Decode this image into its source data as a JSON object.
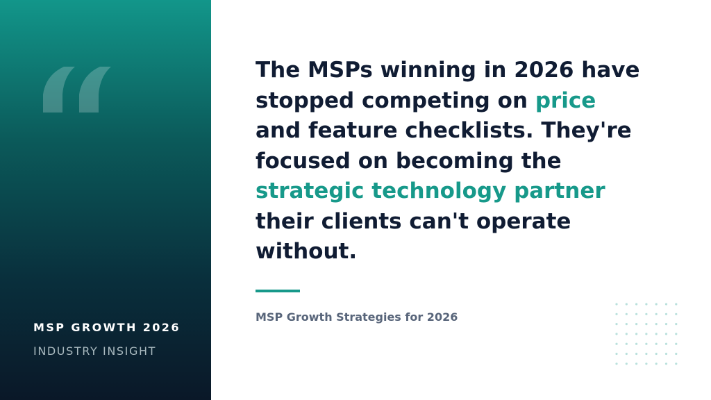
{
  "panel": {
    "title": "MSP GROWTH 2026",
    "subtitle": "INDUSTRY INSIGHT"
  },
  "quote": {
    "line1": "The MSPs winning in 2026 have",
    "line2_text": "stopped competing on ",
    "line2_highlight": "price",
    "line3": "and feature checklists. They're",
    "line4": "focused on becoming the",
    "line5_highlight": "strategic technology partner",
    "line6": "their clients can't operate",
    "line7": "without."
  },
  "source": "MSP Growth Strategies for 2026",
  "colors": {
    "accent": "#17998a",
    "text": "#101c33",
    "muted": "#58657a",
    "panel_top": "#12968a",
    "panel_bottom": "#0a1828"
  },
  "icons": {
    "quote_mark": "quote-mark-icon",
    "decoration": "dot-grid-icon"
  }
}
